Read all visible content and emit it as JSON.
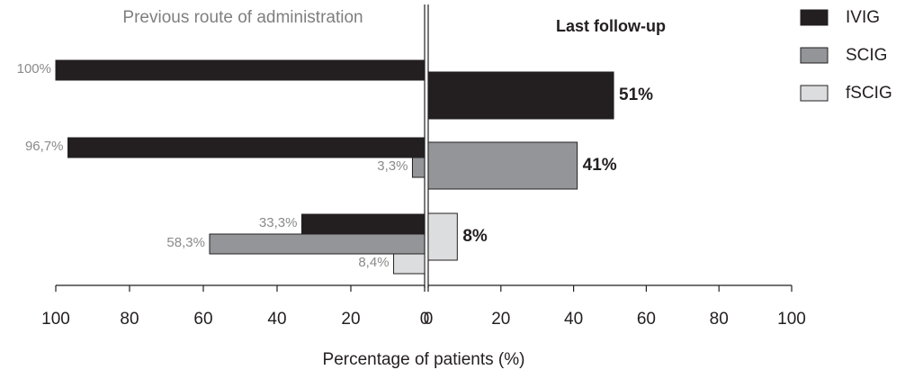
{
  "chart_data": [
    {
      "type": "bar",
      "orientation": "horizontal",
      "title": "Previous route of administration",
      "xlabel": "Percentage of patients (%)",
      "categories": [
        null,
        null,
        null
      ],
      "series": [
        {
          "name": "IVIG",
          "color": "#231f20",
          "values": [
            100,
            96.7,
            33.3
          ],
          "value_labels": [
            "100%",
            "96,7%",
            "33,3%"
          ]
        },
        {
          "name": "SCIG",
          "color": "#939598",
          "values": [
            null,
            3.3,
            58.3
          ],
          "value_labels": [
            null,
            "3,3%",
            "58,3%"
          ]
        },
        {
          "name": "fSCIG",
          "color": "#dcddde",
          "values": [
            null,
            null,
            8.4
          ],
          "value_labels": [
            null,
            null,
            "8,4%"
          ]
        }
      ],
      "xlim": [
        100,
        0
      ],
      "xticks": [
        100,
        80,
        60,
        40,
        20,
        0
      ],
      "legend": "top-right"
    },
    {
      "type": "bar",
      "orientation": "horizontal",
      "title": "Last follow-up",
      "categories": [
        null,
        null,
        null
      ],
      "values": [
        51,
        41,
        8
      ],
      "value_labels": [
        "51%",
        "41%",
        "8%"
      ],
      "colors": [
        "#231f20",
        "#939598",
        "#dcddde"
      ],
      "xlim": [
        0,
        100
      ],
      "xticks": [
        0,
        20,
        40,
        60,
        80,
        100
      ]
    }
  ]
}
